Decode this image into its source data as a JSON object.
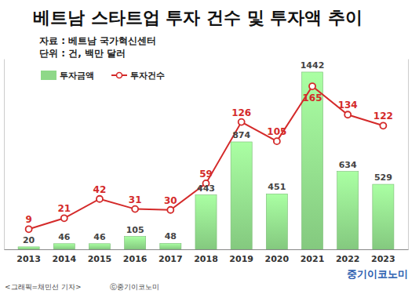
{
  "chart_data": {
    "type": "bar",
    "title": "베트남 스타트업 투자 건수 및 투자액 추이",
    "subtitle": [
      "자료 : 베트남 국가혁신센터",
      "단위 : 건, 백만 달러"
    ],
    "annotations": [
      "중기이코노미",
      "<그래픽=채민선 기자>",
      "ⓒ중기이코노미"
    ],
    "categories": [
      "2013",
      "2014",
      "2015",
      "2016",
      "2017",
      "2018",
      "2019",
      "2020",
      "2021",
      "2022",
      "2023"
    ],
    "series": [
      {
        "name": "투자금액",
        "type": "bar",
        "color": "#8ed888",
        "values": [
          20,
          46,
          46,
          105,
          48,
          443,
          874,
          451,
          1442,
          634,
          529
        ]
      },
      {
        "name": "투자건수",
        "type": "line",
        "color": "#d42a2a",
        "marker": "circle",
        "axis": "y2",
        "values": [
          9,
          21,
          42,
          31,
          30,
          59,
          126,
          105,
          165,
          134,
          122
        ]
      }
    ],
    "ylim": [
      0,
      1550
    ],
    "y2lim": [
      -13,
      195
    ],
    "tick_labels": "x",
    "data_labels": true,
    "legend": "upper left",
    "grid": false
  }
}
